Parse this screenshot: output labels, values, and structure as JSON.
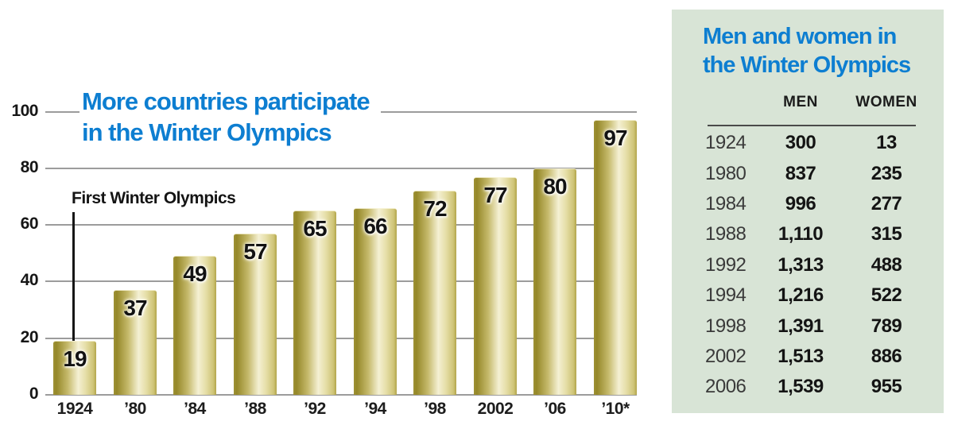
{
  "colors": {
    "accent_blue": "#0d7ed1",
    "bar_edge_gold": "#9e9135",
    "bar_center_gold": "#f4f0d3",
    "grid_gray": "#9c9c9c",
    "table_bg_green": "#d8e4d6",
    "text_dark": "#161616"
  },
  "chart": {
    "title_line1": "More countries participate",
    "title_line2": "in the Winter Olympics",
    "annotation_label": "First Winter Olympics"
  },
  "panel": {
    "title_line1": "Men and women in",
    "title_line2": "the Winter Olympics",
    "col_men": "MEN",
    "col_women": "WOMEN"
  },
  "chart_data": [
    {
      "type": "bar",
      "title": "More countries participate in the Winter Olympics",
      "categories": [
        "1924",
        "’80",
        "’84",
        "’88",
        "’92",
        "’94",
        "’98",
        "2002",
        "’06",
        "’10*"
      ],
      "values": [
        19,
        37,
        49,
        57,
        65,
        66,
        72,
        77,
        80,
        97
      ],
      "xlabel": "",
      "ylabel": "",
      "ylim": [
        0,
        100
      ],
      "y_ticks": [
        0,
        20,
        40,
        60,
        80,
        100
      ],
      "grid": "horizontal gridlines on, behind bars",
      "legend": "none",
      "annotation": {
        "text": "First Winter Olympics",
        "target_category": "1924"
      }
    },
    {
      "type": "table",
      "title": "Men and women in the Winter Olympics",
      "columns": [
        "",
        "MEN",
        "WOMEN"
      ],
      "rows": [
        [
          "1924",
          "300",
          "13"
        ],
        [
          "1980",
          "837",
          "235"
        ],
        [
          "1984",
          "996",
          "277"
        ],
        [
          "1988",
          "1,110",
          "315"
        ],
        [
          "1992",
          "1,313",
          "488"
        ],
        [
          "1994",
          "1,216",
          "522"
        ],
        [
          "1998",
          "1,391",
          "789"
        ],
        [
          "2002",
          "1,513",
          "886"
        ],
        [
          "2006",
          "1,539",
          "955"
        ]
      ]
    }
  ]
}
